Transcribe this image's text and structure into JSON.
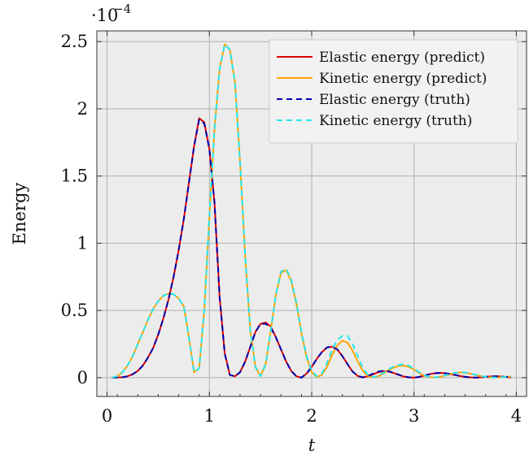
{
  "chart_data": {
    "type": "line",
    "xlabel": "t",
    "ylabel": "Energy",
    "offset_label": "·10",
    "offset_exponent": "−4",
    "xlim": [
      -0.1,
      4.1
    ],
    "ylim": [
      -0.14,
      2.58
    ],
    "x_ticks": [
      0,
      1,
      2,
      3,
      4
    ],
    "x_tick_labels": [
      "0",
      "1",
      "2",
      "3",
      "4"
    ],
    "y_ticks": [
      0,
      0.5,
      1,
      1.5,
      2,
      2.5
    ],
    "y_tick_labels": [
      "0",
      "0.5",
      "1",
      "1.5",
      "2",
      "2.5"
    ],
    "grid": true,
    "legend_position": "top-right",
    "series": [
      {
        "name": "Elastic energy (predict)",
        "color": "#e00000",
        "dash": "solid",
        "x": [
          0.05,
          0.1,
          0.15,
          0.2,
          0.25,
          0.3,
          0.35,
          0.4,
          0.45,
          0.5,
          0.55,
          0.6,
          0.65,
          0.7,
          0.75,
          0.8,
          0.85,
          0.9,
          0.95,
          1.0,
          1.05,
          1.1,
          1.15,
          1.2,
          1.25,
          1.3,
          1.35,
          1.4,
          1.45,
          1.5,
          1.55,
          1.6,
          1.65,
          1.7,
          1.75,
          1.8,
          1.85,
          1.9,
          1.95,
          2.0,
          2.05,
          2.1,
          2.15,
          2.2,
          2.25,
          2.3,
          2.35,
          2.4,
          2.45,
          2.5,
          2.55,
          2.6,
          2.65,
          2.7,
          2.75,
          2.8,
          2.85,
          2.9,
          2.95,
          3.0,
          3.05,
          3.1,
          3.15,
          3.2,
          3.25,
          3.3,
          3.35,
          3.4,
          3.45,
          3.5,
          3.55,
          3.6,
          3.65,
          3.7,
          3.75,
          3.8,
          3.85,
          3.9,
          3.95
        ],
        "values": [
          0,
          0.001,
          0.003,
          0.01,
          0.025,
          0.05,
          0.09,
          0.15,
          0.22,
          0.32,
          0.44,
          0.58,
          0.75,
          0.95,
          1.18,
          1.45,
          1.72,
          1.93,
          1.9,
          1.7,
          1.3,
          0.6,
          0.18,
          0.02,
          0.01,
          0.04,
          0.12,
          0.23,
          0.34,
          0.4,
          0.41,
          0.38,
          0.3,
          0.21,
          0.12,
          0.05,
          0.01,
          0.0,
          0.03,
          0.08,
          0.14,
          0.19,
          0.225,
          0.23,
          0.21,
          0.16,
          0.1,
          0.045,
          0.012,
          0.002,
          0.01,
          0.025,
          0.04,
          0.048,
          0.045,
          0.035,
          0.02,
          0.008,
          0.002,
          0.0,
          0.005,
          0.015,
          0.025,
          0.032,
          0.035,
          0.033,
          0.027,
          0.02,
          0.012,
          0.006,
          0.002,
          0.0,
          0.002,
          0.006,
          0.009,
          0.01,
          0.008,
          0.005,
          0.002
        ]
      },
      {
        "name": "Kinetic energy (predict)",
        "color": "#ffa500",
        "dash": "solid",
        "x": [
          0.05,
          0.1,
          0.15,
          0.2,
          0.25,
          0.3,
          0.35,
          0.4,
          0.45,
          0.5,
          0.55,
          0.6,
          0.65,
          0.7,
          0.75,
          0.8,
          0.85,
          0.9,
          0.95,
          1.0,
          1.05,
          1.1,
          1.15,
          1.2,
          1.25,
          1.3,
          1.35,
          1.4,
          1.45,
          1.5,
          1.55,
          1.6,
          1.65,
          1.7,
          1.75,
          1.8,
          1.85,
          1.9,
          1.95,
          2.0,
          2.05,
          2.1,
          2.15,
          2.2,
          2.25,
          2.3,
          2.35,
          2.4,
          2.45,
          2.5,
          2.55,
          2.6,
          2.65,
          2.7,
          2.75,
          2.8,
          2.85,
          2.9,
          2.95,
          3.0,
          3.05,
          3.1,
          3.15,
          3.2,
          3.25,
          3.3,
          3.35,
          3.4,
          3.45,
          3.5,
          3.55,
          3.6,
          3.65,
          3.7,
          3.75,
          3.8,
          3.85,
          3.9,
          3.95
        ],
        "values": [
          0,
          0.01,
          0.04,
          0.09,
          0.16,
          0.25,
          0.34,
          0.43,
          0.51,
          0.57,
          0.61,
          0.625,
          0.62,
          0.59,
          0.53,
          0.3,
          0.04,
          0.07,
          0.5,
          1.2,
          1.85,
          2.3,
          2.48,
          2.44,
          2.2,
          1.6,
          0.9,
          0.35,
          0.08,
          0.01,
          0.1,
          0.35,
          0.62,
          0.78,
          0.8,
          0.72,
          0.55,
          0.33,
          0.15,
          0.04,
          0.005,
          0.02,
          0.08,
          0.17,
          0.24,
          0.275,
          0.26,
          0.2,
          0.12,
          0.05,
          0.012,
          0.002,
          0.01,
          0.03,
          0.055,
          0.075,
          0.088,
          0.09,
          0.08,
          0.06,
          0.035,
          0.015,
          0.004,
          0.001,
          0.005,
          0.014,
          0.025,
          0.034,
          0.038,
          0.036,
          0.029,
          0.02,
          0.011,
          0.005,
          0.002,
          0.001,
          0.003,
          0.006,
          0.008
        ]
      },
      {
        "name": "Elastic energy (truth)",
        "color": "#0000b0",
        "dash": "dashed",
        "x": [
          0.05,
          0.1,
          0.15,
          0.2,
          0.25,
          0.3,
          0.35,
          0.4,
          0.45,
          0.5,
          0.55,
          0.6,
          0.65,
          0.7,
          0.75,
          0.8,
          0.85,
          0.9,
          0.95,
          1.0,
          1.05,
          1.1,
          1.15,
          1.2,
          1.25,
          1.3,
          1.35,
          1.4,
          1.45,
          1.5,
          1.55,
          1.6,
          1.65,
          1.7,
          1.75,
          1.8,
          1.85,
          1.9,
          1.95,
          2.0,
          2.05,
          2.1,
          2.15,
          2.2,
          2.25,
          2.3,
          2.35,
          2.4,
          2.45,
          2.5,
          2.55,
          2.6,
          2.65,
          2.7,
          2.75,
          2.8,
          2.85,
          2.9,
          2.95,
          3.0,
          3.05,
          3.1,
          3.15,
          3.2,
          3.25,
          3.3,
          3.35,
          3.4,
          3.45,
          3.5,
          3.55,
          3.6,
          3.65,
          3.7,
          3.75,
          3.8,
          3.85,
          3.9,
          3.95
        ],
        "values": [
          0,
          0.001,
          0.003,
          0.01,
          0.025,
          0.05,
          0.09,
          0.15,
          0.22,
          0.32,
          0.44,
          0.58,
          0.75,
          0.95,
          1.18,
          1.45,
          1.72,
          1.92,
          1.89,
          1.7,
          1.3,
          0.6,
          0.18,
          0.02,
          0.01,
          0.04,
          0.12,
          0.23,
          0.34,
          0.4,
          0.4,
          0.37,
          0.3,
          0.21,
          0.12,
          0.05,
          0.01,
          0.0,
          0.03,
          0.08,
          0.14,
          0.19,
          0.225,
          0.23,
          0.21,
          0.16,
          0.1,
          0.045,
          0.012,
          0.002,
          0.012,
          0.03,
          0.045,
          0.052,
          0.048,
          0.037,
          0.022,
          0.009,
          0.002,
          0.0,
          0.005,
          0.015,
          0.025,
          0.032,
          0.035,
          0.033,
          0.027,
          0.02,
          0.012,
          0.006,
          0.002,
          0.0,
          0.002,
          0.006,
          0.009,
          0.01,
          0.008,
          0.005,
          0.002
        ]
      },
      {
        "name": "Kinetic energy (truth)",
        "color": "#22e8f0",
        "dash": "dashed",
        "x": [
          0.05,
          0.1,
          0.15,
          0.2,
          0.25,
          0.3,
          0.35,
          0.4,
          0.45,
          0.5,
          0.55,
          0.6,
          0.65,
          0.7,
          0.75,
          0.8,
          0.85,
          0.9,
          0.95,
          1.0,
          1.05,
          1.1,
          1.15,
          1.2,
          1.25,
          1.3,
          1.35,
          1.4,
          1.45,
          1.5,
          1.55,
          1.6,
          1.65,
          1.7,
          1.75,
          1.8,
          1.85,
          1.9,
          1.95,
          2.0,
          2.05,
          2.1,
          2.15,
          2.2,
          2.25,
          2.3,
          2.35,
          2.4,
          2.45,
          2.5,
          2.55,
          2.6,
          2.65,
          2.7,
          2.75,
          2.8,
          2.85,
          2.9,
          2.95,
          3.0,
          3.05,
          3.1,
          3.15,
          3.2,
          3.25,
          3.3,
          3.35,
          3.4,
          3.45,
          3.5,
          3.55,
          3.6,
          3.65,
          3.7,
          3.75,
          3.8,
          3.85,
          3.9,
          3.95
        ],
        "values": [
          0,
          0.01,
          0.04,
          0.09,
          0.16,
          0.25,
          0.34,
          0.43,
          0.51,
          0.57,
          0.61,
          0.625,
          0.62,
          0.59,
          0.53,
          0.3,
          0.04,
          0.07,
          0.5,
          1.2,
          1.85,
          2.3,
          2.48,
          2.44,
          2.2,
          1.6,
          0.9,
          0.35,
          0.08,
          0.01,
          0.1,
          0.35,
          0.62,
          0.79,
          0.81,
          0.73,
          0.56,
          0.34,
          0.16,
          0.05,
          0.01,
          0.03,
          0.11,
          0.21,
          0.28,
          0.31,
          0.31,
          0.25,
          0.16,
          0.07,
          0.02,
          0.004,
          0.012,
          0.035,
          0.062,
          0.082,
          0.095,
          0.1,
          0.088,
          0.066,
          0.04,
          0.018,
          0.005,
          0.001,
          0.006,
          0.016,
          0.028,
          0.036,
          0.04,
          0.038,
          0.03,
          0.021,
          0.012,
          0.006,
          0.002,
          0.001,
          0.003,
          0.006,
          0.008
        ]
      }
    ]
  }
}
